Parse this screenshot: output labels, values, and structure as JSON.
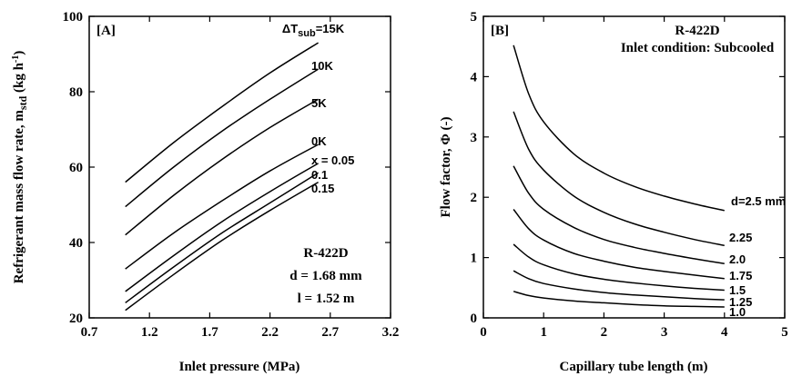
{
  "chart_data": [
    {
      "type": "line",
      "panel_label": "[A]",
      "xlabel": "Inlet pressure (MPa)",
      "ylabel_main": "Refrigerant mass flow rate, m",
      "ylabel_sub": "std",
      "ylabel_unit": " (kg h",
      "ylabel_sup": "-1",
      "ylabel_close": ")",
      "xlim": [
        0.7,
        3.2
      ],
      "ylim": [
        20,
        100
      ],
      "xticks": [
        "0.7",
        "1.2",
        "1.7",
        "2.2",
        "2.7",
        "3.2"
      ],
      "yticks": [
        "20",
        "40",
        "60",
        "80",
        "100"
      ],
      "info": [
        "R-422D",
        "d = 1.68 mm",
        "l = 1.52 m"
      ],
      "top_label_prefix": "ΔT",
      "top_label_sub": "sub",
      "top_label_suffix": "=15K",
      "series": [
        {
          "name": "ΔTsub=15K",
          "x": [
            1.0,
            1.4,
            1.8,
            2.2,
            2.6
          ],
          "y": [
            56,
            66.5,
            76,
            85,
            93
          ]
        },
        {
          "name": "10K",
          "x": [
            1.0,
            1.4,
            1.8,
            2.2,
            2.6
          ],
          "y": [
            49.5,
            60,
            69.5,
            78,
            86
          ]
        },
        {
          "name": "5K",
          "x": [
            1.0,
            1.4,
            1.8,
            2.2,
            2.6
          ],
          "y": [
            42,
            52.5,
            62,
            70.5,
            78
          ]
        },
        {
          "name": "0K",
          "x": [
            1.0,
            1.4,
            1.8,
            2.2,
            2.6
          ],
          "y": [
            33,
            42.5,
            51,
            59,
            66
          ]
        },
        {
          "name": "x = 0.05",
          "x": [
            1.0,
            1.4,
            1.8,
            2.2,
            2.6
          ],
          "y": [
            27,
            36.5,
            45.5,
            53.5,
            61
          ]
        },
        {
          "name": "0.1",
          "x": [
            1.0,
            1.4,
            1.8,
            2.2,
            2.6
          ],
          "y": [
            24,
            33.5,
            42.5,
            50.5,
            58.5
          ]
        },
        {
          "name": "0.15",
          "x": [
            1.0,
            1.4,
            1.8,
            2.2,
            2.6
          ],
          "y": [
            22,
            31.5,
            40.5,
            48.5,
            56
          ]
        }
      ]
    },
    {
      "type": "line",
      "panel_label": "[B]",
      "title": "R-422D",
      "subtitle": "Inlet condition: Subcooled",
      "xlabel": "Capillary tube length (m)",
      "ylabel": "Flow factor, Φ (-)",
      "xlim": [
        0,
        5
      ],
      "ylim": [
        0,
        5
      ],
      "xticks": [
        "0",
        "1",
        "2",
        "3",
        "4",
        "5"
      ],
      "yticks": [
        "0",
        "1",
        "2",
        "3",
        "4",
        "5"
      ],
      "series": [
        {
          "name": "d=2.5 mm",
          "x": [
            0.5,
            0.75,
            1,
            1.5,
            2,
            2.5,
            3,
            3.5,
            4
          ],
          "y": [
            4.52,
            3.72,
            3.25,
            2.72,
            2.4,
            2.18,
            2.02,
            1.89,
            1.78
          ]
        },
        {
          "name": "2.25",
          "x": [
            0.5,
            0.75,
            1,
            1.5,
            2,
            2.5,
            3,
            3.5,
            4
          ],
          "y": [
            3.42,
            2.8,
            2.45,
            2.02,
            1.75,
            1.56,
            1.42,
            1.3,
            1.2
          ]
        },
        {
          "name": "2.0",
          "x": [
            0.5,
            0.75,
            1,
            1.5,
            2,
            2.5,
            3,
            3.5,
            4
          ],
          "y": [
            2.52,
            2.07,
            1.8,
            1.5,
            1.3,
            1.17,
            1.07,
            0.98,
            0.9
          ]
        },
        {
          "name": "1.75",
          "x": [
            0.5,
            0.75,
            1,
            1.5,
            2,
            2.5,
            3,
            3.5,
            4
          ],
          "y": [
            1.8,
            1.48,
            1.29,
            1.07,
            0.94,
            0.84,
            0.77,
            0.71,
            0.65
          ]
        },
        {
          "name": "1.5",
          "x": [
            0.5,
            0.75,
            1,
            1.5,
            2,
            2.5,
            3,
            3.5,
            4
          ],
          "y": [
            1.22,
            1.01,
            0.88,
            0.73,
            0.64,
            0.58,
            0.53,
            0.49,
            0.46
          ]
        },
        {
          "name": "1.25",
          "x": [
            0.5,
            0.75,
            1,
            1.5,
            2,
            2.5,
            3,
            3.5,
            4
          ],
          "y": [
            0.78,
            0.65,
            0.57,
            0.48,
            0.42,
            0.38,
            0.35,
            0.32,
            0.3
          ]
        },
        {
          "name": "1.0",
          "x": [
            0.5,
            0.75,
            1,
            1.5,
            2,
            2.5,
            3,
            3.5,
            4
          ],
          "y": [
            0.44,
            0.37,
            0.33,
            0.28,
            0.25,
            0.22,
            0.2,
            0.19,
            0.18
          ]
        }
      ]
    }
  ]
}
